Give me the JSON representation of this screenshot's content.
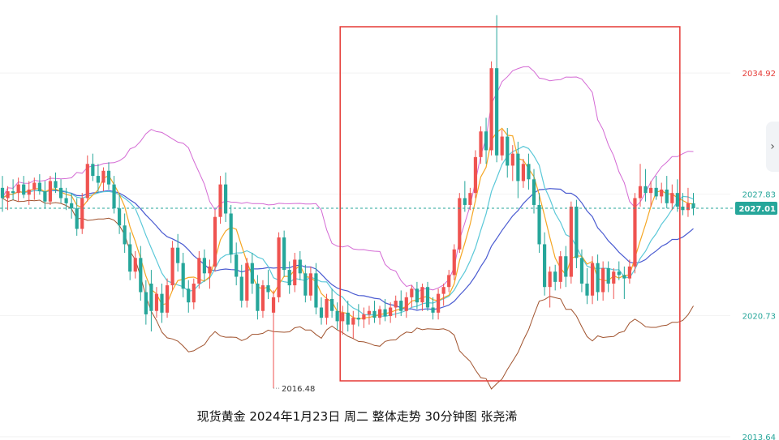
{
  "caption": "现货黄金 2024年1月23日 周二  整体走势 30分钟图  张尧浠",
  "colors": {
    "up": "#ef5350",
    "down": "#26a69a",
    "ma_fast": "#f5a623",
    "ma_mid": "#5bc8d8",
    "ma_slow": "#4a5bd1",
    "bb_upper": "#d46ad4",
    "bb_lower": "#a0522d",
    "highlight_box": "#e53935",
    "current_price_bg": "#26a69a"
  },
  "icons": {
    "scroll_right": "chevron-right-icon"
  },
  "chart_data": {
    "type": "candlestick",
    "title": "",
    "ylim": [
      2013.64,
      2039.0
    ],
    "y_axis_labels": [
      {
        "value": 2034.92,
        "text": "2034.92",
        "color": "#e53935"
      },
      {
        "value": 2027.83,
        "text": "2027.83",
        "color": "#26a69a"
      },
      {
        "value": 2020.73,
        "text": "2020.73",
        "color": "#26a69a"
      },
      {
        "value": 2013.64,
        "text": "2013.64",
        "color": "#26a69a"
      }
    ],
    "current_price": {
      "value": 2027.01,
      "text": "2027.01"
    },
    "annotation": {
      "text": "2016.48",
      "value": 2016.48,
      "candle_index": 51
    },
    "highlight_range": {
      "from_index": 64,
      "to_index": 127
    },
    "candles": [
      [
        2028.2,
        2028.9,
        2026.8,
        2027.6
      ],
      [
        2027.6,
        2028.3,
        2026.9,
        2028.0
      ],
      [
        2028.0,
        2028.7,
        2027.5,
        2027.9
      ],
      [
        2027.9,
        2028.8,
        2027.4,
        2028.4
      ],
      [
        2028.4,
        2028.9,
        2027.6,
        2027.8
      ],
      [
        2027.8,
        2028.6,
        2027.2,
        2028.1
      ],
      [
        2028.1,
        2028.8,
        2027.5,
        2028.5
      ],
      [
        2028.5,
        2029.0,
        2027.8,
        2028.0
      ],
      [
        2028.0,
        2028.6,
        2027.0,
        2027.4
      ],
      [
        2027.4,
        2028.9,
        2027.2,
        2028.6
      ],
      [
        2028.6,
        2029.1,
        2027.9,
        2028.2
      ],
      [
        2028.2,
        2028.7,
        2027.3,
        2027.6
      ],
      [
        2027.6,
        2028.2,
        2026.9,
        2027.3
      ],
      [
        2027.3,
        2027.9,
        2026.4,
        2027.0
      ],
      [
        2027.0,
        2027.6,
        2025.4,
        2025.8
      ],
      [
        2025.8,
        2027.9,
        2025.5,
        2027.6
      ],
      [
        2027.6,
        2030.1,
        2027.4,
        2029.6
      ],
      [
        2029.6,
        2030.2,
        2028.6,
        2028.9
      ],
      [
        2028.9,
        2029.6,
        2027.9,
        2028.5
      ],
      [
        2028.5,
        2029.4,
        2028.0,
        2029.2
      ],
      [
        2029.2,
        2029.7,
        2028.1,
        2028.4
      ],
      [
        2028.4,
        2028.9,
        2026.7,
        2027.0
      ],
      [
        2027.0,
        2027.8,
        2025.5,
        2026.0
      ],
      [
        2026.0,
        2026.7,
        2024.4,
        2024.9
      ],
      [
        2024.9,
        2025.6,
        2022.8,
        2023.3
      ],
      [
        2023.3,
        2024.5,
        2022.9,
        2024.1
      ],
      [
        2024.1,
        2024.8,
        2021.6,
        2022.1
      ],
      [
        2022.1,
        2022.8,
        2020.2,
        2020.8
      ],
      [
        2022.6,
        2023.4,
        2019.8,
        2021.0
      ],
      [
        2021.0,
        2022.4,
        2020.6,
        2022.0
      ],
      [
        2022.0,
        2022.6,
        2020.3,
        2020.9
      ],
      [
        2020.9,
        2022.9,
        2020.6,
        2022.5
      ],
      [
        2022.5,
        2025.1,
        2022.2,
        2024.7
      ],
      [
        2024.7,
        2025.5,
        2023.3,
        2023.8
      ],
      [
        2023.8,
        2024.4,
        2021.8,
        2022.3
      ],
      [
        2022.3,
        2022.8,
        2020.9,
        2021.5
      ],
      [
        2021.5,
        2022.9,
        2021.1,
        2022.6
      ],
      [
        2022.6,
        2024.5,
        2022.3,
        2024.1
      ],
      [
        2024.1,
        2024.6,
        2022.7,
        2023.2
      ],
      [
        2023.2,
        2024.0,
        2022.3,
        2023.6
      ],
      [
        2023.6,
        2026.9,
        2023.3,
        2026.5
      ],
      [
        2026.5,
        2028.9,
        2026.1,
        2028.4
      ],
      [
        2028.4,
        2029.1,
        2026.2,
        2026.7
      ],
      [
        2026.7,
        2027.2,
        2023.8,
        2024.3
      ],
      [
        2024.3,
        2025.0,
        2022.5,
        2023.0
      ],
      [
        2023.0,
        2023.7,
        2021.2,
        2021.6
      ],
      [
        2021.6,
        2024.1,
        2021.2,
        2023.8
      ],
      [
        2023.8,
        2024.4,
        2022.0,
        2022.6
      ],
      [
        2022.6,
        2023.1,
        2020.5,
        2021.0
      ],
      [
        2021.0,
        2022.8,
        2020.6,
        2022.5
      ],
      [
        2022.5,
        2023.4,
        2021.7,
        2022.1
      ],
      [
        2020.9,
        2022.2,
        2016.48,
        2021.8
      ],
      [
        2021.8,
        2025.6,
        2021.5,
        2025.3
      ],
      [
        2025.3,
        2025.7,
        2023.0,
        2023.4
      ],
      [
        2023.4,
        2023.9,
        2022.0,
        2022.5
      ],
      [
        2022.5,
        2024.4,
        2022.1,
        2024.0
      ],
      [
        2024.0,
        2024.5,
        2022.8,
        2023.2
      ],
      [
        2023.2,
        2023.7,
        2021.5,
        2021.9
      ],
      [
        2021.9,
        2023.6,
        2021.6,
        2023.2
      ],
      [
        2023.2,
        2023.8,
        2020.8,
        2021.2
      ],
      [
        2021.2,
        2021.8,
        2020.2,
        2020.6
      ],
      [
        2020.6,
        2022.0,
        2020.2,
        2021.7
      ],
      [
        2021.7,
        2022.3,
        2020.6,
        2021.0
      ],
      [
        2021.0,
        2021.5,
        2019.9,
        2020.4
      ],
      [
        2020.4,
        2021.3,
        2019.6,
        2020.9
      ],
      [
        2020.9,
        2021.6,
        2019.8,
        2020.2
      ],
      [
        2020.2,
        2021.0,
        2019.4,
        2020.6
      ],
      [
        2020.6,
        2021.4,
        2020.1,
        2020.5
      ],
      [
        2020.5,
        2021.2,
        2020.0,
        2020.8
      ],
      [
        2020.8,
        2021.3,
        2020.2,
        2021.0
      ],
      [
        2021.0,
        2021.6,
        2020.3,
        2020.6
      ],
      [
        2020.6,
        2021.3,
        2020.2,
        2021.1
      ],
      [
        2021.1,
        2021.7,
        2020.4,
        2020.7
      ],
      [
        2020.7,
        2021.5,
        2020.3,
        2021.2
      ],
      [
        2021.2,
        2021.9,
        2020.6,
        2021.6
      ],
      [
        2021.6,
        2022.2,
        2020.7,
        2021.0
      ],
      [
        2021.0,
        2022.1,
        2020.6,
        2021.8
      ],
      [
        2021.8,
        2022.5,
        2021.2,
        2022.3
      ],
      [
        2022.3,
        2022.7,
        2021.1,
        2021.5
      ],
      [
        2021.5,
        2022.6,
        2021.0,
        2022.4
      ],
      [
        2022.4,
        2022.7,
        2021.0,
        2021.2
      ],
      [
        2021.2,
        2021.8,
        2020.5,
        2020.9
      ],
      [
        2020.9,
        2022.3,
        2020.5,
        2022.0
      ],
      [
        2022.0,
        2022.6,
        2021.3,
        2022.4
      ],
      [
        2022.4,
        2023.4,
        2022.1,
        2023.1
      ],
      [
        2023.1,
        2024.9,
        2022.8,
        2024.6
      ],
      [
        2024.6,
        2027.9,
        2024.4,
        2027.6
      ],
      [
        2027.6,
        2028.6,
        2026.8,
        2027.2
      ],
      [
        2027.2,
        2028.2,
        2026.9,
        2027.9
      ],
      [
        2027.9,
        2030.4,
        2027.6,
        2030.0
      ],
      [
        2030.0,
        2031.8,
        2029.6,
        2031.5
      ],
      [
        2031.5,
        2032.3,
        2029.6,
        2030.4
      ],
      [
        2030.4,
        2035.6,
        2030.1,
        2035.2
      ],
      [
        2035.2,
        2038.3,
        2029.7,
        2030.1
      ],
      [
        2030.1,
        2031.6,
        2029.8,
        2031.2
      ],
      [
        2031.2,
        2031.7,
        2028.8,
        2029.5
      ],
      [
        2029.5,
        2030.7,
        2028.6,
        2030.2
      ],
      [
        2030.2,
        2030.9,
        2027.6,
        2028.6
      ],
      [
        2028.6,
        2029.9,
        2028.2,
        2029.6
      ],
      [
        2029.6,
        2030.2,
        2028.1,
        2028.7
      ],
      [
        2028.7,
        2029.3,
        2026.7,
        2027.2
      ],
      [
        2027.2,
        2027.9,
        2024.4,
        2024.9
      ],
      [
        2024.9,
        2025.6,
        2021.9,
        2022.4
      ],
      [
        2022.4,
        2023.6,
        2021.2,
        2023.3
      ],
      [
        2023.3,
        2023.7,
        2022.2,
        2022.7
      ],
      [
        2022.7,
        2024.5,
        2022.3,
        2024.2
      ],
      [
        2024.2,
        2024.8,
        2022.4,
        2023.0
      ],
      [
        2023.0,
        2027.4,
        2022.6,
        2027.1
      ],
      [
        2027.1,
        2027.5,
        2023.5,
        2024.1
      ],
      [
        2024.1,
        2024.6,
        2022.1,
        2022.6
      ],
      [
        2022.6,
        2023.5,
        2021.4,
        2021.9
      ],
      [
        2021.9,
        2024.2,
        2021.4,
        2023.8
      ],
      [
        2023.8,
        2024.3,
        2021.6,
        2022.1
      ],
      [
        2022.1,
        2023.9,
        2021.6,
        2023.5
      ],
      [
        2023.5,
        2023.9,
        2022.1,
        2022.6
      ],
      [
        2022.6,
        2023.5,
        2021.7,
        2023.3
      ],
      [
        2023.3,
        2023.9,
        2022.8,
        2023.1
      ],
      [
        2023.1,
        2023.6,
        2021.7,
        2022.9
      ],
      [
        2022.9,
        2024.0,
        2022.6,
        2023.6
      ],
      [
        2023.6,
        2027.9,
        2023.2,
        2027.6
      ],
      [
        2027.6,
        2029.6,
        2027.1,
        2028.3
      ],
      [
        2028.3,
        2029.3,
        2027.4,
        2027.9
      ],
      [
        2027.9,
        2028.6,
        2027.1,
        2028.2
      ],
      [
        2028.2,
        2028.9,
        2027.5,
        2027.7
      ],
      [
        2027.7,
        2028.5,
        2027.3,
        2028.1
      ],
      [
        2028.1,
        2028.9,
        2027.0,
        2027.3
      ],
      [
        2027.3,
        2028.4,
        2026.9,
        2027.9
      ],
      [
        2027.9,
        2028.7,
        2026.8,
        2027.1
      ],
      [
        2027.1,
        2027.9,
        2026.6,
        2026.9
      ],
      [
        2026.9,
        2028.2,
        2026.5,
        2027.3
      ],
      [
        2027.3,
        2027.9,
        2026.6,
        2027.01
      ]
    ]
  }
}
